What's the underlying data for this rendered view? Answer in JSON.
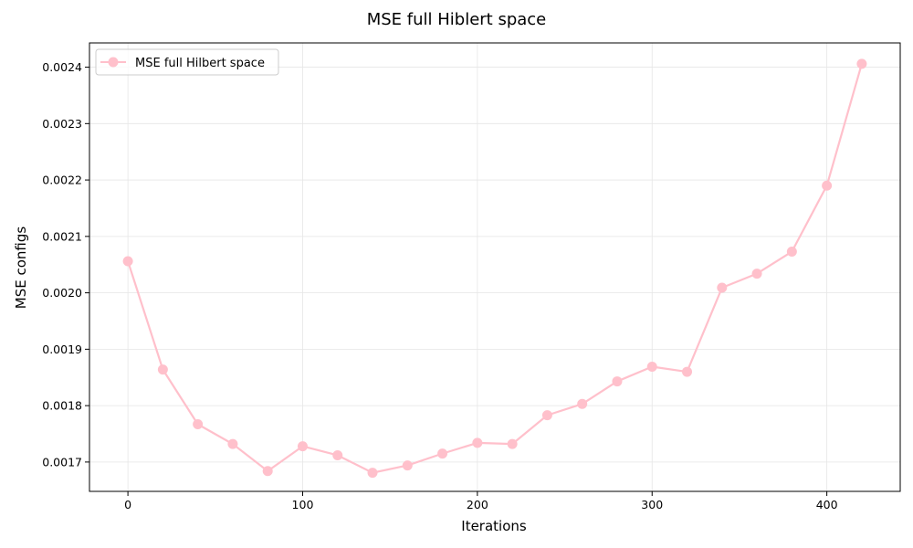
{
  "chart_data": {
    "type": "line",
    "title": "MSE full Hiblert space",
    "xlabel": "Iterations",
    "ylabel": "MSE configs",
    "xlim": [
      -22,
      442
    ],
    "ylim": [
      0.001648,
      0.002443
    ],
    "xticks": [
      0,
      100,
      200,
      300,
      400
    ],
    "xtick_labels": [
      "0",
      "100",
      "200",
      "300",
      "400"
    ],
    "yticks": [
      0.0017,
      0.0018,
      0.0019,
      0.002,
      0.0021,
      0.0022,
      0.0023,
      0.0024
    ],
    "ytick_labels": [
      "0.0017",
      "0.0018",
      "0.0019",
      "0.0020",
      "0.0021",
      "0.0022",
      "0.0023",
      "0.0024"
    ],
    "grid": true,
    "legend_position": "top-left",
    "series": [
      {
        "name": "MSE full Hilbert space",
        "color": "#ffc0cb",
        "marker": "circle",
        "x": [
          0,
          20,
          40,
          60,
          80,
          100,
          120,
          140,
          160,
          180,
          200,
          220,
          240,
          260,
          280,
          300,
          320,
          340,
          360,
          380,
          400,
          420
        ],
        "y": [
          0.002056,
          0.001864,
          0.001767,
          0.001732,
          0.001684,
          0.001728,
          0.001712,
          0.001681,
          0.001694,
          0.001715,
          0.001734,
          0.001732,
          0.001783,
          0.001803,
          0.001843,
          0.001869,
          0.00186,
          0.002009,
          0.002034,
          0.002073,
          0.00219,
          0.002406
        ]
      }
    ]
  }
}
